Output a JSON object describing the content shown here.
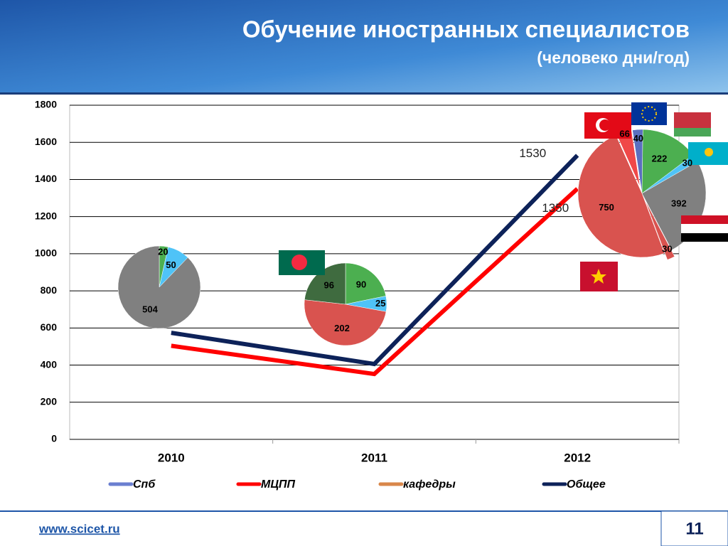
{
  "slide": {
    "title": "Обучение иностранных специалистов",
    "subtitle": "(человеко дни/год)",
    "url": "www.scicet.ru",
    "page": "11"
  },
  "chart_data": [
    {
      "type": "line",
      "categories": [
        "2010",
        "2011",
        "2012"
      ],
      "ylim": [
        0,
        1800
      ],
      "yticks": [
        0,
        200,
        400,
        600,
        800,
        1000,
        1200,
        1400,
        1600,
        1800
      ],
      "grid": true,
      "legend": "bottom",
      "series": [
        {
          "name": "Спб",
          "color": "#6b7fd0",
          "values": [
            null,
            null,
            null
          ]
        },
        {
          "name": "МЦПП",
          "color": "#ff0000",
          "values": [
            504,
            352,
            1350
          ],
          "labeled": [
            false,
            false,
            true
          ]
        },
        {
          "name": "кафедры",
          "color": "#d9874a",
          "values": [
            null,
            null,
            null
          ]
        },
        {
          "name": "Общее",
          "color": "#0d2259",
          "values": [
            574,
            406,
            1530
          ],
          "labeled": [
            false,
            false,
            true
          ]
        }
      ]
    },
    {
      "type": "pie",
      "values": [
        20,
        50,
        504
      ],
      "colors": [
        "#4caf50",
        "#4fc3f7",
        "#808080"
      ]
    },
    {
      "type": "pie",
      "values": [
        90,
        25,
        202,
        96
      ],
      "colors": [
        "#4caf50",
        "#4fc3f7",
        "#d9534f",
        "#3f6b3f"
      ]
    },
    {
      "type": "pie",
      "values": [
        40,
        222,
        30,
        392,
        30,
        750,
        66
      ],
      "colors": [
        "#5b6fbf",
        "#4caf50",
        "#4fc3f7",
        "#808080",
        "#d9534f",
        "#d9534f",
        "#f04848"
      ]
    }
  ]
}
